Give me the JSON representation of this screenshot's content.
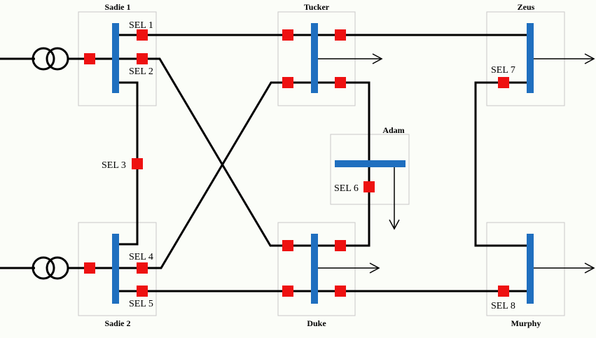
{
  "colors": {
    "background": "#fbfdf8",
    "line": "#000000",
    "bus": "#1f6fbf",
    "breaker": "#ee1111",
    "box_stroke": "#c8c8c8"
  },
  "substations": {
    "sadie1": "Sadie 1",
    "sadie2": "Sadie 2",
    "tucker": "Tucker",
    "adam": "Adam",
    "duke": "Duke",
    "zeus": "Zeus",
    "murphy": "Murphy"
  },
  "relays": {
    "sel1": "SEL 1",
    "sel2": "SEL 2",
    "sel3": "SEL 3",
    "sel4": "SEL 4",
    "sel5": "SEL 5",
    "sel6": "SEL 6",
    "sel7": "SEL 7",
    "sel8": "SEL 8"
  }
}
